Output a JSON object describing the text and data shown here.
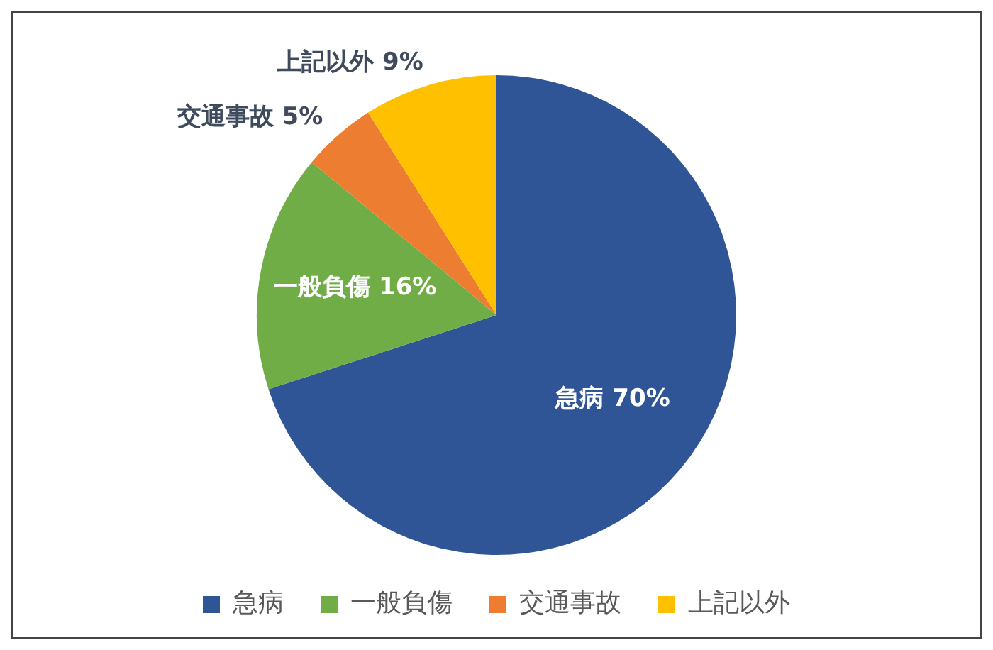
{
  "chart_data": {
    "type": "pie",
    "categories": [
      "急病",
      "一般負傷",
      "交通事故",
      "上記以外"
    ],
    "values": [
      70,
      16,
      5,
      9
    ],
    "colors": [
      "#2f5597",
      "#70ad47",
      "#ed7d31",
      "#ffc000"
    ],
    "value_labels": [
      "70%",
      "16%",
      "5%",
      "9%"
    ],
    "legend": "bottom"
  }
}
